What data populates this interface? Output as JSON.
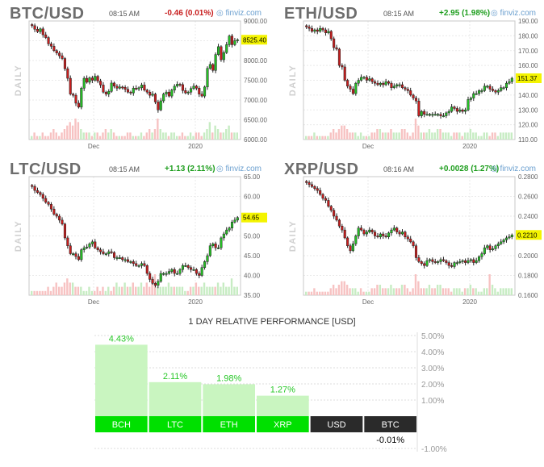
{
  "panels": [
    {
      "symbol": "BTC/USD",
      "time": "08:15 AM",
      "change": "-0.46 (0.01%)",
      "direction": "down",
      "brand": "finviz.com",
      "side_label": "DAILY",
      "last": "8525.40",
      "y_ticks": [
        "9000.00",
        "8500.00",
        "8000.00",
        "7500.00",
        "7000.00",
        "6500.00",
        "6000.00"
      ],
      "y_tick_values": [
        9000,
        8500,
        8000,
        7500,
        7000,
        6500,
        6000
      ],
      "ylim": [
        6000,
        9000
      ],
      "x_ticks": [
        "Dec",
        "2020"
      ],
      "chart_data": {
        "type": "candlestick",
        "ylim": [
          6000,
          9000
        ],
        "last": 8525.4,
        "closes": [
          8880,
          8790,
          8730,
          8800,
          8650,
          8580,
          8420,
          8360,
          8250,
          8190,
          8120,
          8050,
          7790,
          7550,
          7150,
          7120,
          6920,
          6820,
          7300,
          7550,
          7450,
          7560,
          7500,
          7600,
          7480,
          7380,
          7200,
          7150,
          7220,
          7430,
          7350,
          7300,
          7330,
          7320,
          7270,
          7200,
          7180,
          7300,
          7280,
          7310,
          7380,
          7250,
          7200,
          7120,
          7150,
          6950,
          6750,
          6980,
          7150,
          7200,
          7100,
          7250,
          7350,
          7400,
          7390,
          7240,
          7180,
          7200,
          7290,
          7350,
          7300,
          7150,
          7100,
          7330,
          7800,
          7900,
          7750,
          8150,
          8350,
          8020,
          8200,
          8400,
          8620,
          8400,
          8500,
          8525
        ]
      },
      "volume": [
        1,
        2,
        1,
        1,
        2,
        1,
        1,
        2,
        3,
        2,
        1,
        2,
        3,
        4,
        5,
        4,
        6,
        5,
        3,
        2,
        2,
        2,
        1,
        2,
        2,
        1,
        2,
        3,
        2,
        3,
        2,
        1,
        1,
        1,
        1,
        2,
        2,
        1,
        1,
        1,
        2,
        1,
        2,
        3,
        2,
        3,
        6,
        3,
        2,
        2,
        1,
        2,
        2,
        1,
        1,
        2,
        1,
        1,
        2,
        1,
        2,
        2,
        1,
        2,
        3,
        5,
        2,
        4,
        3,
        2,
        2,
        3,
        4,
        2,
        2,
        2
      ]
    },
    {
      "symbol": "ETH/USD",
      "time": "08:15 AM",
      "change": "+2.95 (1.98%)",
      "direction": "up",
      "brand": "finviz.com",
      "side_label": "DAILY",
      "last": "151.37",
      "y_ticks": [
        "190.00",
        "180.00",
        "170.00",
        "160.00",
        "150.00",
        "140.00",
        "130.00",
        "120.00",
        "110.00"
      ],
      "y_tick_values": [
        190,
        180,
        170,
        160,
        150,
        140,
        130,
        120,
        110
      ],
      "ylim": [
        110,
        190
      ],
      "x_ticks": [
        "Dec",
        "2020"
      ],
      "chart_data": {
        "type": "candlestick",
        "ylim": [
          110,
          190
        ],
        "last": 151.37,
        "closes": [
          186,
          185,
          183,
          184,
          183,
          185,
          184,
          182,
          183,
          178,
          172,
          171,
          160,
          159,
          150,
          146,
          144,
          141,
          148,
          150,
          152,
          152,
          150,
          151,
          149,
          148,
          147,
          148,
          147,
          149,
          148,
          145,
          146,
          147,
          147,
          145,
          144,
          143,
          140,
          138,
          136,
          126,
          129,
          127,
          127,
          127,
          127,
          127,
          127,
          126,
          126,
          128,
          129,
          132,
          131,
          129,
          130,
          129,
          130,
          137,
          138,
          141,
          141,
          143,
          143,
          146,
          146,
          144,
          143,
          142,
          143,
          145,
          145,
          148,
          149,
          151.37
        ]
      },
      "volume": [
        1,
        1,
        1,
        2,
        1,
        1,
        1,
        1,
        1,
        2,
        3,
        2,
        3,
        4,
        4,
        3,
        2,
        2,
        2,
        1,
        2,
        1,
        1,
        1,
        2,
        2,
        3,
        3,
        2,
        2,
        2,
        3,
        2,
        2,
        2,
        3,
        3,
        2,
        1,
        2,
        6,
        4,
        2,
        2,
        2,
        3,
        2,
        2,
        3,
        3,
        2,
        2,
        2,
        1,
        2,
        2,
        2,
        1,
        2,
        2,
        3,
        2,
        2,
        1,
        1,
        2,
        2,
        1,
        2,
        2,
        1,
        2,
        2,
        2,
        2,
        2
      ]
    },
    {
      "symbol": "LTC/USD",
      "time": "08:15 AM",
      "change": "+1.13 (2.11%)",
      "direction": "up",
      "brand": "finviz.com",
      "side_label": "DAILY",
      "last": "54.65",
      "y_ticks": [
        "65.00",
        "60.00",
        "55.00",
        "50.00",
        "45.00",
        "40.00",
        "35.00"
      ],
      "y_tick_values": [
        65,
        60,
        55,
        50,
        45,
        40,
        35
      ],
      "ylim": [
        35,
        65
      ],
      "x_ticks": [
        "Dec",
        "2020"
      ],
      "chart_data": {
        "type": "candlestick",
        "ylim": [
          35,
          65
        ],
        "last": 54.65,
        "closes": [
          62.5,
          61.5,
          61.0,
          60.5,
          59.5,
          58.5,
          58.0,
          56.8,
          55.5,
          55.0,
          54.0,
          53.0,
          49.5,
          47.5,
          45.5,
          45.5,
          44.8,
          44.0,
          46.5,
          47.0,
          47.2,
          48.0,
          48.5,
          47.0,
          46.5,
          46.0,
          45.5,
          45.5,
          46.0,
          45.8,
          44.5,
          44.5,
          44.5,
          44.0,
          44.0,
          43.5,
          43.5,
          43.0,
          42.5,
          42.5,
          43.0,
          42.5,
          40.5,
          39.0,
          38.0,
          37.5,
          38.5,
          40.5,
          40.5,
          40.5,
          41.0,
          41.5,
          40.5,
          40.5,
          41.5,
          42.5,
          42.5,
          42.0,
          41.5,
          41.5,
          40.5,
          40.0,
          42.0,
          43.5,
          45.0,
          47.5,
          48.0,
          47.0,
          47.0,
          49.5,
          50.5,
          51.5,
          52.0,
          53.5,
          54.0,
          54.65
        ]
      },
      "volume": [
        1,
        1,
        1,
        1,
        1,
        1,
        2,
        1,
        2,
        3,
        2,
        2,
        3,
        4,
        3,
        3,
        2,
        2,
        2,
        1,
        1,
        2,
        1,
        1,
        2,
        1,
        2,
        1,
        2,
        1,
        2,
        3,
        2,
        2,
        3,
        2,
        2,
        3,
        2,
        2,
        3,
        2,
        3,
        2,
        4,
        5,
        2,
        2,
        2,
        2,
        3,
        2,
        2,
        2,
        2,
        2,
        1,
        1,
        2,
        2,
        3,
        2,
        2,
        3,
        2,
        2,
        2,
        2,
        3,
        2,
        3,
        2,
        2,
        4,
        2,
        2
      ]
    },
    {
      "symbol": "XRP/USD",
      "time": "08:16 AM",
      "change": "+0.0028 (1.27%)",
      "direction": "up",
      "brand": "finviz.com",
      "side_label": "DAILY",
      "last": "0.2210",
      "y_ticks": [
        "0.2800",
        "0.2600",
        "0.2400",
        "0.2200",
        "0.2000",
        "0.1800",
        "0.1600"
      ],
      "y_tick_values": [
        0.28,
        0.26,
        0.24,
        0.22,
        0.2,
        0.18,
        0.16
      ],
      "ylim": [
        0.16,
        0.28
      ],
      "x_ticks": [
        "Dec",
        "2020"
      ],
      "chart_data": {
        "type": "candlestick",
        "ylim": [
          0.16,
          0.28
        ],
        "last": 0.221,
        "closes": [
          0.274,
          0.272,
          0.27,
          0.268,
          0.266,
          0.262,
          0.258,
          0.256,
          0.25,
          0.246,
          0.24,
          0.236,
          0.23,
          0.226,
          0.218,
          0.21,
          0.205,
          0.212,
          0.22,
          0.228,
          0.226,
          0.222,
          0.224,
          0.226,
          0.224,
          0.22,
          0.219,
          0.222,
          0.22,
          0.219,
          0.223,
          0.226,
          0.228,
          0.224,
          0.222,
          0.224,
          0.219,
          0.217,
          0.214,
          0.21,
          0.198,
          0.194,
          0.192,
          0.19,
          0.195,
          0.196,
          0.194,
          0.193,
          0.194,
          0.196,
          0.195,
          0.193,
          0.19,
          0.189,
          0.193,
          0.193,
          0.194,
          0.195,
          0.193,
          0.195,
          0.196,
          0.193,
          0.195,
          0.199,
          0.202,
          0.208,
          0.21,
          0.206,
          0.207,
          0.21,
          0.212,
          0.214,
          0.216,
          0.218,
          0.219,
          0.221
        ]
      },
      "volume": [
        1,
        1,
        1,
        2,
        1,
        1,
        1,
        1,
        1,
        2,
        3,
        2,
        3,
        4,
        4,
        3,
        2,
        2,
        2,
        1,
        2,
        1,
        1,
        1,
        2,
        2,
        3,
        3,
        2,
        2,
        2,
        3,
        2,
        2,
        2,
        3,
        3,
        2,
        1,
        2,
        6,
        4,
        2,
        2,
        2,
        3,
        2,
        2,
        3,
        3,
        2,
        2,
        2,
        1,
        2,
        2,
        2,
        1,
        2,
        2,
        3,
        2,
        2,
        1,
        1,
        2,
        2,
        6,
        3,
        2,
        1,
        2,
        2,
        2,
        2,
        2
      ]
    }
  ],
  "performance": {
    "title": "1 DAY RELATIVE PERFORMANCE  [USD]",
    "y_ticks": [
      "5.00%",
      "4.00%",
      "3.00%",
      "2.00%",
      "1.00%",
      "-1.00%"
    ],
    "y_tick_values": [
      5,
      4,
      3,
      2,
      1,
      -1
    ],
    "chart_data": {
      "type": "bar",
      "categories": [
        "BCH",
        "LTC",
        "ETH",
        "XRP",
        "USD",
        "BTC"
      ],
      "values": [
        4.43,
        2.11,
        1.98,
        1.27,
        0,
        -0.01
      ],
      "value_labels": [
        "4.43%",
        "2.11%",
        "1.98%",
        "1.27%",
        "",
        "-0.01%"
      ],
      "ylim": [
        -1,
        5
      ]
    },
    "colors": {
      "positive_bar": "#c9f5c0",
      "positive_label": "#28c828",
      "positive_cat": "#00e000",
      "neutral_cat": "#2a2a2a",
      "negative_label": "#000000"
    }
  }
}
